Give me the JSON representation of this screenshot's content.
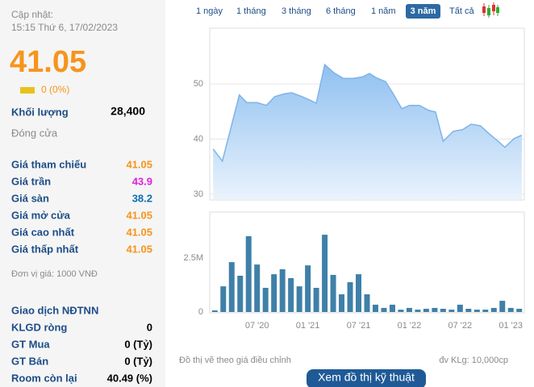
{
  "header": {
    "updated_label": "Cập nhật:",
    "updated_time": "15:15 Thứ 6, 17/02/2023",
    "price": "41.05",
    "change": "0 (0%)"
  },
  "volume": {
    "label": "Khối lượng",
    "value": "28,400"
  },
  "status": "Đóng cửa",
  "price_table": {
    "rows": [
      [
        "Giá tham chiếu",
        "41.05"
      ],
      [
        "Giá trần",
        "43.9"
      ],
      [
        "Giá sàn",
        "38.2"
      ],
      [
        "Giá mở cửa",
        "41.05"
      ],
      [
        "Giá cao nhất",
        "41.05"
      ],
      [
        "Giá thấp nhất",
        "41.05"
      ]
    ]
  },
  "unit_note": "Đơn vị giá: 1000 VNĐ",
  "foreign": {
    "title": "Giao dịch NĐTNN",
    "rows": [
      [
        "KLGD ròng",
        "0"
      ],
      [
        "GT Mua",
        "0 (Tỷ)"
      ],
      [
        "GT Bán",
        "0 (Tỷ)"
      ],
      [
        "Room còn lại",
        "40.49 (%)"
      ]
    ]
  },
  "range_buttons": {
    "options": [
      "1 ngày",
      "1 tháng",
      "3 tháng",
      "6 tháng",
      "1 năm",
      "3 năm",
      "Tất cả"
    ],
    "selected": 5
  },
  "chart_data": [
    {
      "type": "area",
      "color": "#7fb3ea",
      "x": [
        -0.2,
        0.9,
        2.9,
        3.8,
        5,
        6.1,
        7.1,
        8.2,
        9.1,
        10.3,
        11.2,
        12,
        13,
        14.1,
        15.2,
        16.4,
        17.5,
        18.3,
        19,
        20.2,
        21.1,
        22.1,
        23,
        24.2,
        25.3,
        26.1,
        27,
        28.2,
        29.3,
        30.3,
        31.4,
        32.4,
        33.5,
        34.3,
        35.4,
        36.3
      ],
      "values": [
        38.2,
        36.0,
        48.0,
        46.6,
        46.6,
        46.1,
        47.7,
        48.2,
        48.4,
        47.7,
        47.1,
        46.5,
        53.5,
        52.0,
        51.0,
        51.0,
        51.3,
        51.9,
        51.2,
        50.4,
        48.2,
        45.5,
        46.1,
        46.1,
        45.2,
        44.9,
        39.6,
        41.4,
        41.7,
        42.7,
        42.4,
        41.0,
        39.6,
        38.5,
        40.1,
        40.7
      ],
      "xlim": [
        -0.6,
        36.6
      ],
      "ylim": [
        29.1,
        60.1
      ],
      "yticks": [
        30,
        40,
        50
      ],
      "grid": true
    },
    {
      "type": "bar",
      "color": "#3f80a8",
      "x": [
        0,
        1,
        2,
        3,
        4,
        5,
        6,
        7,
        8,
        9,
        10,
        11,
        12,
        13,
        14,
        15,
        16,
        17,
        18,
        19,
        20,
        21,
        22,
        23,
        24,
        25,
        26,
        27,
        28,
        29,
        30,
        31,
        32,
        33,
        34,
        35,
        36
      ],
      "values": [
        75000,
        1190000,
        2310000,
        1680000,
        3510000,
        2200000,
        1120000,
        1750000,
        1980000,
        1570000,
        1190000,
        2160000,
        1120000,
        3580000,
        1720000,
        820000,
        1380000,
        1750000,
        820000,
        340000,
        190000,
        340000,
        110000,
        190000,
        110000,
        150000,
        190000,
        150000,
        110000,
        340000,
        150000,
        110000,
        110000,
        190000,
        520000,
        190000,
        150000
      ],
      "xlim": [
        -0.6,
        36.6
      ],
      "ylim": [
        0,
        4630000
      ],
      "yticks": [
        0,
        {
          "value": 2500000,
          "label": "2.5M"
        }
      ],
      "xticks": [
        {
          "value": 5,
          "label": "07 '20"
        },
        {
          "value": 11,
          "label": "01 '21"
        },
        {
          "value": 17,
          "label": "07 '21"
        },
        {
          "value": 23,
          "label": "01 '22"
        },
        {
          "value": 29,
          "label": "07 '22"
        },
        {
          "value": 35,
          "label": "01 '23"
        }
      ]
    }
  ],
  "footer": {
    "note": "Đồ thị vẽ theo giá điều chỉnh",
    "unit": "đv KLg: 10,000cp",
    "button": "Xem đồ thị kỹ thuật"
  }
}
